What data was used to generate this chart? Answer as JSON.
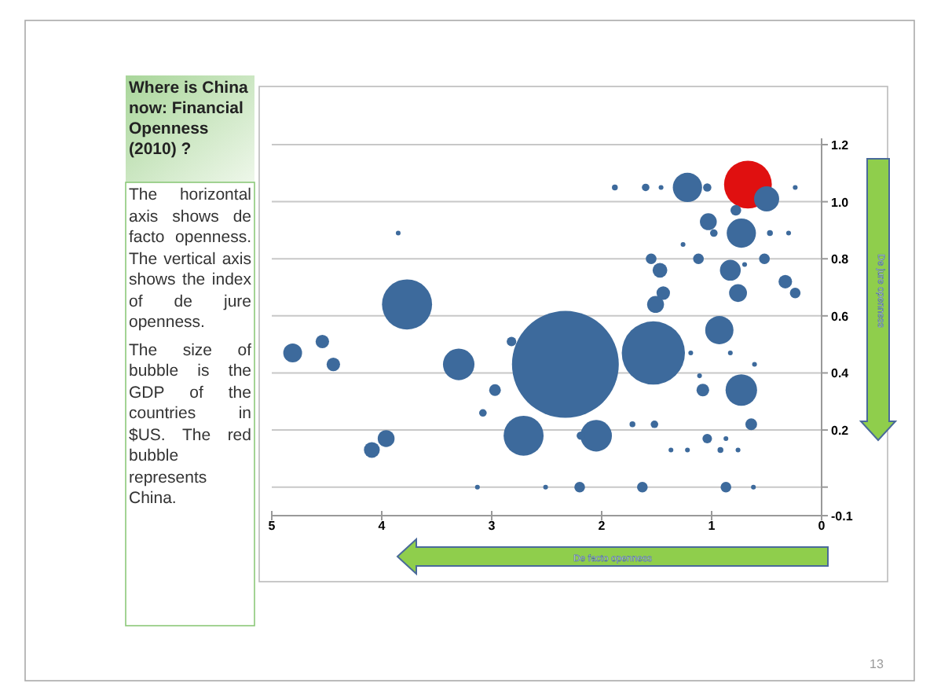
{
  "chart_data": {
    "type": "bubble",
    "title": "Where is China now: Financial Openness (2010) ?",
    "xlabel": "De facto openness",
    "ylabel": "De jure openness",
    "annotations": [
      "The horizontal axis shows de facto openness. The vertical axis shows the index of de jure openness.",
      "The size of bubble is the GDP of the countries in $US. The red bubble represents China.",
      "13"
    ],
    "xlim": [
      5,
      0
    ],
    "xticks": [
      5,
      4,
      3,
      2,
      1,
      0
    ],
    "ylim": [
      -0.1,
      1.2
    ],
    "yticks": [
      {
        "value": -0.1,
        "label": "-0.1"
      },
      {
        "value": 0,
        "label": null
      },
      {
        "value": 0.2,
        "label": "0.2"
      },
      {
        "value": 0.4,
        "label": "0.4"
      },
      {
        "value": 0.6,
        "label": "0.6"
      },
      {
        "value": 0.8,
        "label": "0.8"
      },
      {
        "value": 1,
        "label": "1.0"
      },
      {
        "value": 1.2,
        "label": "1.2"
      }
    ],
    "grid": "y",
    "marker": "circle",
    "x": [
      1.22,
      0.67,
      0.5,
      1.88,
      1.6,
      1.46,
      1.04,
      0.24,
      0.78,
      1.03,
      0.73,
      0.98,
      0.47,
      0.3,
      3.85,
      1.55,
      1.12,
      0.52,
      1.47,
      0.83,
      0.33,
      1.44,
      0.76,
      0.24,
      1.51,
      3.77,
      0.93,
      2.33,
      1.53,
      3.3,
      4.81,
      4.54,
      4.44,
      2.82,
      2.97,
      1.08,
      0.73,
      3.08,
      2.71,
      2.05,
      2.19,
      3.96,
      4.09,
      1.72,
      1.52,
      0.64,
      1.04,
      0.87,
      1.22,
      0.92,
      0.76,
      2.2,
      1.63,
      0.87,
      3.13,
      2.51,
      0.62,
      1.19,
      0.83,
      0.61,
      1.26,
      0.7,
      1.11,
      1.37
    ],
    "values": [
      1.05,
      1.06,
      1.01,
      1.05,
      1.05,
      1.05,
      1.05,
      1.05,
      0.97,
      0.93,
      0.89,
      0.89,
      0.89,
      0.89,
      0.89,
      0.8,
      0.8,
      0.8,
      0.76,
      0.76,
      0.72,
      0.68,
      0.68,
      0.68,
      0.64,
      0.64,
      0.55,
      0.43,
      0.47,
      0.43,
      0.47,
      0.51,
      0.43,
      0.51,
      0.34,
      0.34,
      0.34,
      0.26,
      0.18,
      0.18,
      0.18,
      0.17,
      0.13,
      0.22,
      0.22,
      0.22,
      0.17,
      0.17,
      0.13,
      0.13,
      0.13,
      0,
      0,
      0,
      0,
      0,
      0,
      0.47,
      0.47,
      0.43,
      0.85,
      0.78,
      0.39,
      0.13
    ],
    "sizes": [
      0.075,
      0.2,
      0.055,
      0.003,
      0.005,
      0.002,
      0.006,
      0.002,
      0.01,
      0.025,
      0.075,
      0.005,
      0.003,
      0.002,
      0.002,
      0.01,
      0.01,
      0.01,
      0.019,
      0.038,
      0.016,
      0.016,
      0.028,
      0.01,
      0.025,
      0.22,
      0.07,
      1,
      0.35,
      0.087,
      0.031,
      0.016,
      0.016,
      0.008,
      0.012,
      0.014,
      0.087,
      0.005,
      0.14,
      0.087,
      0.006,
      0.025,
      0.022,
      0.003,
      0.005,
      0.012,
      0.008,
      0.002,
      0.002,
      0.003,
      0.002,
      0.01,
      0.01,
      0.01,
      0.002,
      0.002,
      0.002,
      0.002,
      0.002,
      0.002,
      0.002,
      0.002,
      0.002,
      0.002
    ],
    "colors": [
      "#3d6a9c",
      "#e01010",
      "#3d6a9c",
      "#3d6a9c",
      "#3d6a9c",
      "#3d6a9c",
      "#3d6a9c",
      "#3d6a9c",
      "#3d6a9c",
      "#3d6a9c",
      "#3d6a9c",
      "#3d6a9c",
      "#3d6a9c",
      "#3d6a9c",
      "#3d6a9c",
      "#3d6a9c",
      "#3d6a9c",
      "#3d6a9c",
      "#3d6a9c",
      "#3d6a9c",
      "#3d6a9c",
      "#3d6a9c",
      "#3d6a9c",
      "#3d6a9c",
      "#3d6a9c",
      "#3d6a9c",
      "#3d6a9c",
      "#3d6a9c",
      "#3d6a9c",
      "#3d6a9c",
      "#3d6a9c",
      "#3d6a9c",
      "#3d6a9c",
      "#3d6a9c",
      "#3d6a9c",
      "#3d6a9c",
      "#3d6a9c",
      "#3d6a9c",
      "#3d6a9c",
      "#3d6a9c",
      "#3d6a9c",
      "#3d6a9c",
      "#3d6a9c",
      "#3d6a9c",
      "#3d6a9c",
      "#3d6a9c",
      "#3d6a9c",
      "#3d6a9c",
      "#3d6a9c",
      "#3d6a9c",
      "#3d6a9c",
      "#3d6a9c",
      "#3d6a9c",
      "#3d6a9c",
      "#3d6a9c",
      "#3d6a9c",
      "#3d6a9c",
      "#3d6a9c",
      "#3d6a9c",
      "#3d6a9c",
      "#3d6a9c",
      "#3d6a9c",
      "#3d6a9c",
      "#3d6a9c"
    ]
  }
}
